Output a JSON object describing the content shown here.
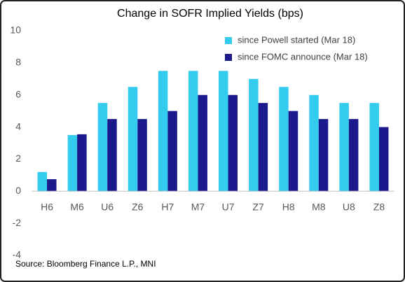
{
  "chart_data": {
    "type": "bar",
    "title": "Change in SOFR Implied Yields (bps)",
    "categories": [
      "H6",
      "M6",
      "U6",
      "Z6",
      "H7",
      "M7",
      "U7",
      "Z7",
      "H8",
      "M8",
      "U8",
      "Z8"
    ],
    "series": [
      {
        "name": "since Powell started (Mar 18)",
        "color": "#33ccee",
        "values": [
          1.2,
          3.5,
          5.5,
          6.5,
          7.5,
          7.5,
          7.5,
          7.0,
          6.5,
          6.0,
          5.5,
          5.5
        ]
      },
      {
        "name": "since FOMC announce (Mar 18)",
        "color": "#1a1a8c",
        "values": [
          0.75,
          3.55,
          4.5,
          4.5,
          5.0,
          6.0,
          6.0,
          5.5,
          5.0,
          4.5,
          4.5,
          4.0
        ]
      }
    ],
    "ylim": [
      -4,
      10
    ],
    "yticks": [
      -4,
      -2,
      0,
      2,
      4,
      6,
      8,
      10
    ],
    "grid": false,
    "legend": "top-right",
    "source": "Source: Bloomberg Finance L.P., MNI"
  }
}
